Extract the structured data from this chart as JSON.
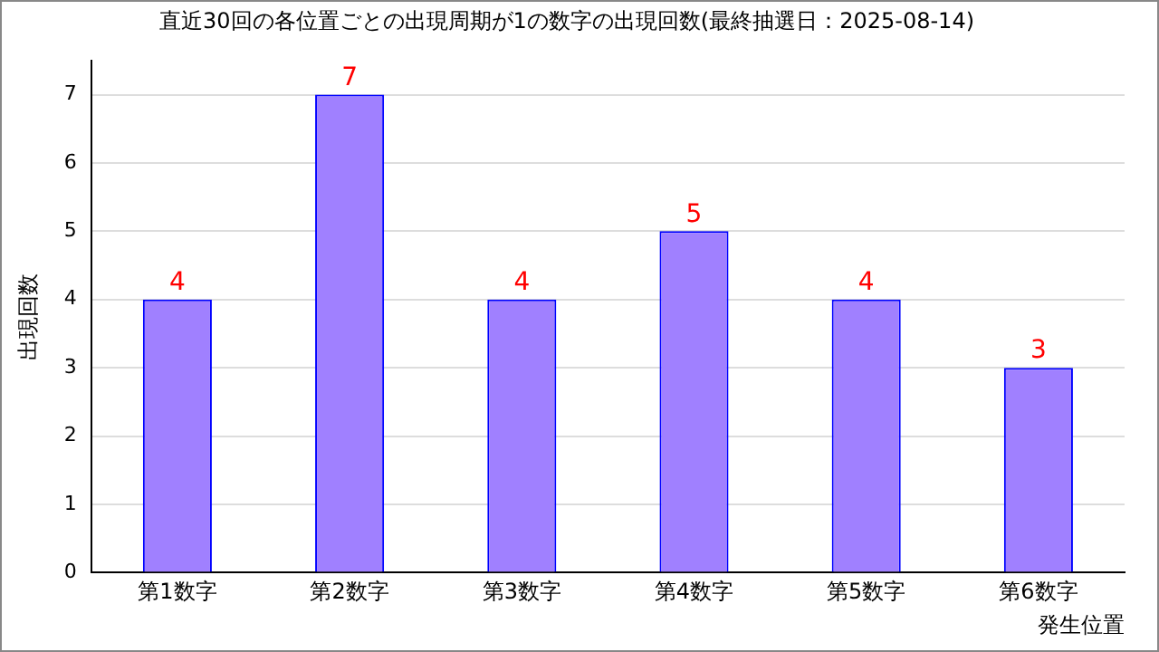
{
  "chart_data": {
    "type": "bar",
    "title": "直近30回の各位置ごとの出現周期が1の数字の出現回数(最終抽選日：2025-08-14)",
    "xlabel": "発生位置",
    "ylabel": "出現回数",
    "categories": [
      "第1数字",
      "第2数字",
      "第3数字",
      "第4数字",
      "第5数字",
      "第6数字"
    ],
    "values": [
      4,
      7,
      4,
      5,
      4,
      3
    ],
    "color": "#a080ff",
    "ylim": [
      0,
      7.5
    ],
    "yticks": [
      0,
      1,
      2,
      3,
      4,
      5,
      6,
      7
    ],
    "grid": "y",
    "data_labels": true,
    "legend": false
  }
}
